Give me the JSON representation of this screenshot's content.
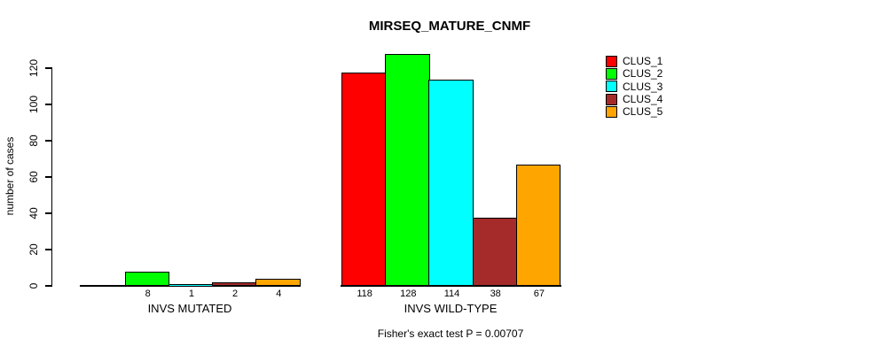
{
  "chart_data": {
    "type": "bar",
    "title": "MIRSEQ_MATURE_CNMF",
    "ylabel": "number of cases",
    "xlabel": "",
    "ylim": [
      0,
      120
    ],
    "yticks": [
      0,
      20,
      40,
      60,
      80,
      100,
      120
    ],
    "grid": false,
    "legend_position": "top-right",
    "bar_value_labels_shown": true,
    "categories": [
      "INVS MUTATED",
      "INVS WILD-TYPE"
    ],
    "series": [
      {
        "name": "CLUS_1",
        "color": "#FF0000",
        "values": [
          0,
          118
        ]
      },
      {
        "name": "CLUS_2",
        "color": "#00FF00",
        "values": [
          8,
          128
        ]
      },
      {
        "name": "CLUS_3",
        "color": "#00FFFF",
        "values": [
          1,
          114
        ]
      },
      {
        "name": "CLUS_4",
        "color": "#A52A2A",
        "values": [
          2,
          38
        ]
      },
      {
        "name": "CLUS_5",
        "color": "#FFA500",
        "values": [
          4,
          67
        ]
      }
    ],
    "annotation": "Fisher's exact test P = 0.00707"
  }
}
